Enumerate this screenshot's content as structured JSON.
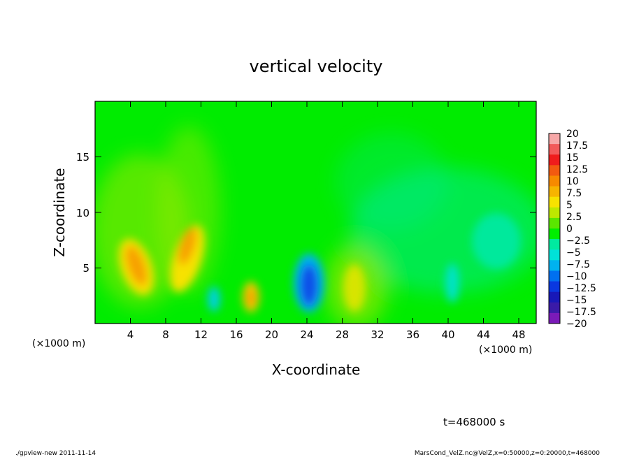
{
  "chart_data": {
    "type": "heatmap",
    "title": "vertical velocity",
    "xlabel": "X-coordinate",
    "ylabel": "Z-coordinate",
    "x_unit_note": "(×1000 m)",
    "x_unit_note_right": "(×1000 m)",
    "xlim": [
      0,
      50
    ],
    "ylim": [
      0,
      20
    ],
    "x_ticks": [
      4,
      8,
      12,
      16,
      20,
      24,
      28,
      32,
      36,
      40,
      44,
      48
    ],
    "y_ticks": [
      5,
      10,
      15
    ],
    "colorbar": {
      "labels": [
        "20",
        "17.5",
        "15",
        "12.5",
        "10",
        "7.5",
        "5",
        "2.5",
        "0",
        "−2.5",
        "−5",
        "−7.5",
        "−10",
        "−12.5",
        "−15",
        "−17.5",
        "−20"
      ],
      "levels": [
        20,
        17.5,
        15,
        12.5,
        10,
        7.5,
        5,
        2.5,
        0,
        -2.5,
        -5,
        -7.5,
        -10,
        -12.5,
        -15,
        -17.5,
        -20
      ],
      "colors": [
        "#f7a8a8",
        "#f25a5a",
        "#ef1c1c",
        "#f25a10",
        "#f78a00",
        "#f7b400",
        "#f7e200",
        "#bde800",
        "#5ae600",
        "#00ee00",
        "#00eaa0",
        "#00e2d8",
        "#00b2f0",
        "#0070f0",
        "#0a38e0",
        "#1818b8",
        "#3a1aa8",
        "#7a1ab8"
      ]
    },
    "features": [
      {
        "label": "updraft",
        "x": 5.0,
        "z": 6.3,
        "value": 10.0
      },
      {
        "label": "updraft",
        "x": 10.5,
        "z": 7.0,
        "value": 9.0
      },
      {
        "label": "updraft",
        "x": 17.6,
        "z": 2.5,
        "value": 9.0
      },
      {
        "label": "updraft",
        "x": 29.5,
        "z": 3.2,
        "value": 4.0
      },
      {
        "label": "downdraft",
        "x": 24.0,
        "z": 3.2,
        "value": -14.0
      },
      {
        "label": "downdraft",
        "x": 13.5,
        "z": 2.3,
        "value": -4.5
      },
      {
        "label": "downdraft",
        "x": 40.5,
        "z": 3.5,
        "value": -3.0
      }
    ],
    "annotations": {
      "time": "t=468000 s",
      "footer_left": "./gpview-new   2011-11-14",
      "footer_right": "MarsCond_VelZ.nc@VelZ,x=0:50000,z=0:20000,t=468000"
    }
  }
}
